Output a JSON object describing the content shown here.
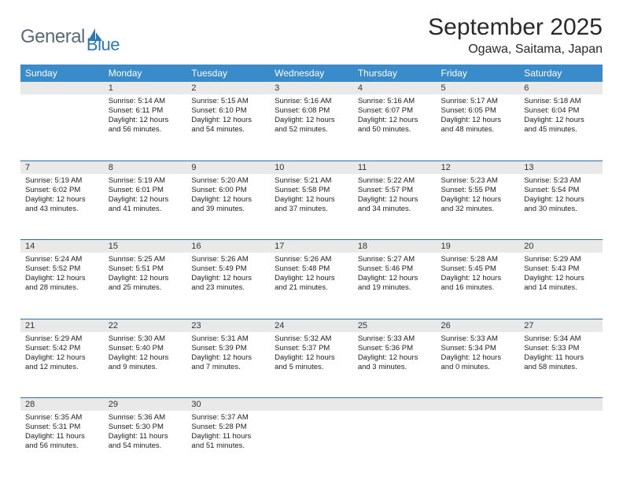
{
  "logo": {
    "part1": "General",
    "part2": "Blue"
  },
  "title": "September 2025",
  "location": "Ogawa, Saitama, Japan",
  "colors": {
    "header_bg": "#3a8bc9",
    "header_text": "#ffffff",
    "daynum_bg": "#e9e9e9",
    "row_divider": "#2d6fa3",
    "text": "#222222",
    "title_text": "#2a2a2a",
    "logo_gray": "#5c6b73",
    "logo_blue": "#2d79b5"
  },
  "weekdays": [
    "Sunday",
    "Monday",
    "Tuesday",
    "Wednesday",
    "Thursday",
    "Friday",
    "Saturday"
  ],
  "weeks": [
    [
      null,
      {
        "d": "1",
        "sr": "5:14 AM",
        "ss": "6:11 PM",
        "dl": "12 hours and 56 minutes."
      },
      {
        "d": "2",
        "sr": "5:15 AM",
        "ss": "6:10 PM",
        "dl": "12 hours and 54 minutes."
      },
      {
        "d": "3",
        "sr": "5:16 AM",
        "ss": "6:08 PM",
        "dl": "12 hours and 52 minutes."
      },
      {
        "d": "4",
        "sr": "5:16 AM",
        "ss": "6:07 PM",
        "dl": "12 hours and 50 minutes."
      },
      {
        "d": "5",
        "sr": "5:17 AM",
        "ss": "6:05 PM",
        "dl": "12 hours and 48 minutes."
      },
      {
        "d": "6",
        "sr": "5:18 AM",
        "ss": "6:04 PM",
        "dl": "12 hours and 45 minutes."
      }
    ],
    [
      {
        "d": "7",
        "sr": "5:19 AM",
        "ss": "6:02 PM",
        "dl": "12 hours and 43 minutes."
      },
      {
        "d": "8",
        "sr": "5:19 AM",
        "ss": "6:01 PM",
        "dl": "12 hours and 41 minutes."
      },
      {
        "d": "9",
        "sr": "5:20 AM",
        "ss": "6:00 PM",
        "dl": "12 hours and 39 minutes."
      },
      {
        "d": "10",
        "sr": "5:21 AM",
        "ss": "5:58 PM",
        "dl": "12 hours and 37 minutes."
      },
      {
        "d": "11",
        "sr": "5:22 AM",
        "ss": "5:57 PM",
        "dl": "12 hours and 34 minutes."
      },
      {
        "d": "12",
        "sr": "5:23 AM",
        "ss": "5:55 PM",
        "dl": "12 hours and 32 minutes."
      },
      {
        "d": "13",
        "sr": "5:23 AM",
        "ss": "5:54 PM",
        "dl": "12 hours and 30 minutes."
      }
    ],
    [
      {
        "d": "14",
        "sr": "5:24 AM",
        "ss": "5:52 PM",
        "dl": "12 hours and 28 minutes."
      },
      {
        "d": "15",
        "sr": "5:25 AM",
        "ss": "5:51 PM",
        "dl": "12 hours and 25 minutes."
      },
      {
        "d": "16",
        "sr": "5:26 AM",
        "ss": "5:49 PM",
        "dl": "12 hours and 23 minutes."
      },
      {
        "d": "17",
        "sr": "5:26 AM",
        "ss": "5:48 PM",
        "dl": "12 hours and 21 minutes."
      },
      {
        "d": "18",
        "sr": "5:27 AM",
        "ss": "5:46 PM",
        "dl": "12 hours and 19 minutes."
      },
      {
        "d": "19",
        "sr": "5:28 AM",
        "ss": "5:45 PM",
        "dl": "12 hours and 16 minutes."
      },
      {
        "d": "20",
        "sr": "5:29 AM",
        "ss": "5:43 PM",
        "dl": "12 hours and 14 minutes."
      }
    ],
    [
      {
        "d": "21",
        "sr": "5:29 AM",
        "ss": "5:42 PM",
        "dl": "12 hours and 12 minutes."
      },
      {
        "d": "22",
        "sr": "5:30 AM",
        "ss": "5:40 PM",
        "dl": "12 hours and 9 minutes."
      },
      {
        "d": "23",
        "sr": "5:31 AM",
        "ss": "5:39 PM",
        "dl": "12 hours and 7 minutes."
      },
      {
        "d": "24",
        "sr": "5:32 AM",
        "ss": "5:37 PM",
        "dl": "12 hours and 5 minutes."
      },
      {
        "d": "25",
        "sr": "5:33 AM",
        "ss": "5:36 PM",
        "dl": "12 hours and 3 minutes."
      },
      {
        "d": "26",
        "sr": "5:33 AM",
        "ss": "5:34 PM",
        "dl": "12 hours and 0 minutes."
      },
      {
        "d": "27",
        "sr": "5:34 AM",
        "ss": "5:33 PM",
        "dl": "11 hours and 58 minutes."
      }
    ],
    [
      {
        "d": "28",
        "sr": "5:35 AM",
        "ss": "5:31 PM",
        "dl": "11 hours and 56 minutes."
      },
      {
        "d": "29",
        "sr": "5:36 AM",
        "ss": "5:30 PM",
        "dl": "11 hours and 54 minutes."
      },
      {
        "d": "30",
        "sr": "5:37 AM",
        "ss": "5:28 PM",
        "dl": "11 hours and 51 minutes."
      },
      null,
      null,
      null,
      null
    ]
  ],
  "labels": {
    "sunrise": "Sunrise:",
    "sunset": "Sunset:",
    "daylight": "Daylight:"
  }
}
